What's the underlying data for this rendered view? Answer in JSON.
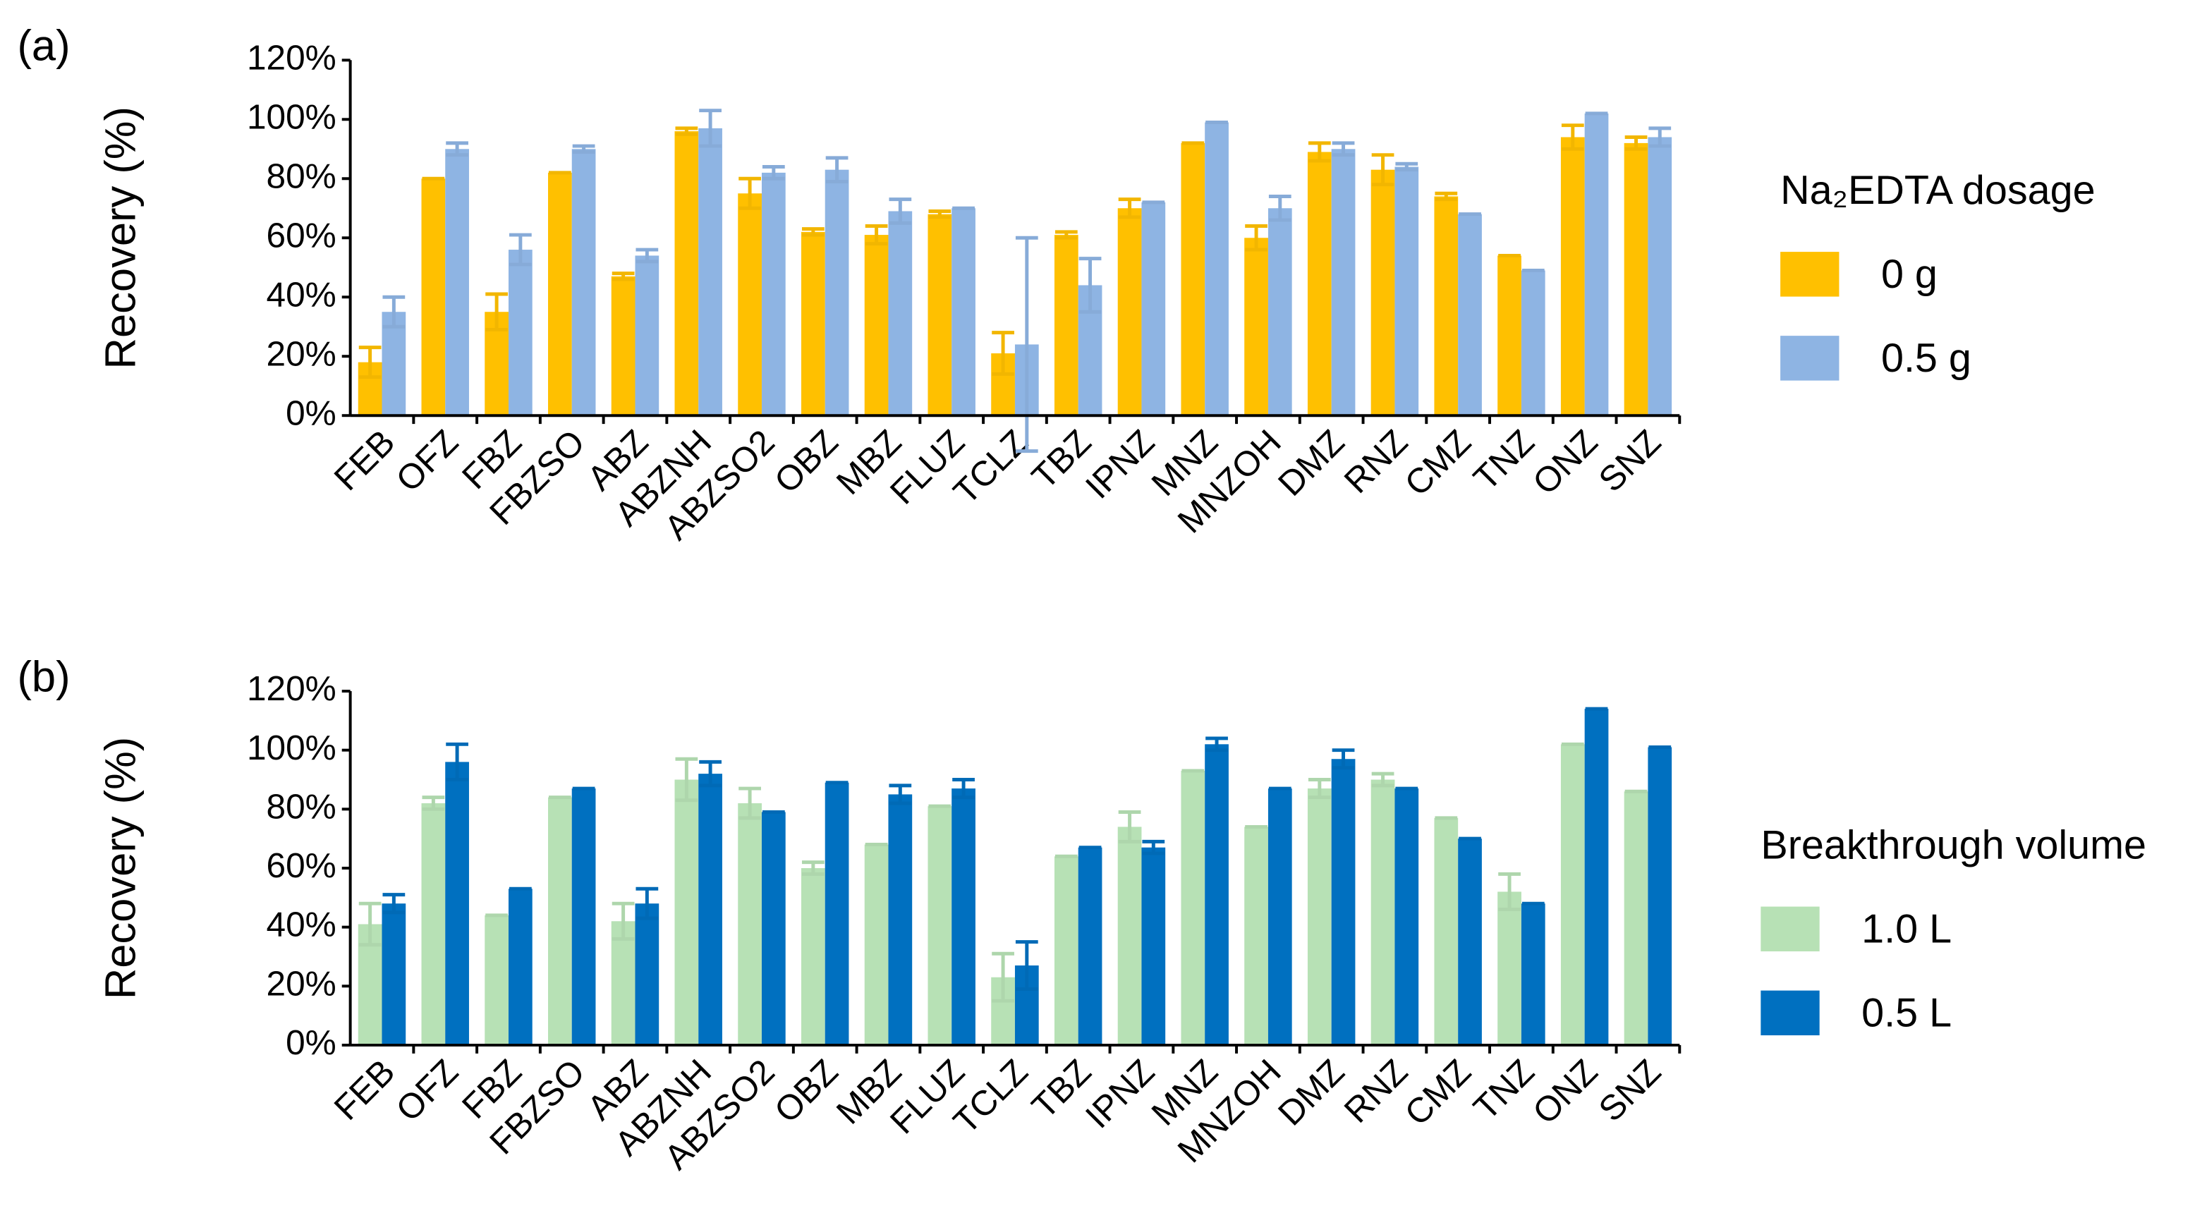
{
  "chart_data": [
    {
      "type": "bar",
      "panel_label": "(a)",
      "y_label": "Recovery (%)",
      "legend_title": "Na₂EDTA dosage",
      "legend": "right",
      "categories": [
        "FEB",
        "OFZ",
        "FBZ",
        "FBZSO",
        "ABZ",
        "ABZNH",
        "ABZSO2",
        "OBZ",
        "MBZ",
        "FLUZ",
        "TCLZ",
        "TBZ",
        "IPNZ",
        "MNZ",
        "MNZOH",
        "DMZ",
        "RNZ",
        "CMZ",
        "TNZ",
        "ONZ",
        "SNZ"
      ],
      "series": [
        {
          "name": "0 g",
          "color": "#ffc000",
          "values": [
            18,
            80,
            35,
            82,
            47,
            96,
            75,
            62,
            61,
            68,
            21,
            61,
            70,
            92,
            60,
            89,
            83,
            74,
            54,
            94,
            92
          ],
          "errors": [
            5,
            0,
            6,
            0,
            1,
            1,
            5,
            1,
            3,
            1,
            7,
            1,
            3,
            0,
            4,
            3,
            5,
            1,
            0,
            4,
            2
          ]
        },
        {
          "name": "0.5 g",
          "color": "#8eb4e3",
          "values": [
            35,
            90,
            56,
            90,
            54,
            97,
            82,
            83,
            69,
            70,
            24,
            44,
            72,
            99,
            70,
            90,
            84,
            68,
            49,
            102,
            94
          ],
          "errors": [
            5,
            2,
            5,
            1,
            2,
            6,
            2,
            4,
            4,
            0,
            36,
            9,
            0,
            0,
            4,
            2,
            1,
            0,
            0,
            0,
            3
          ]
        }
      ],
      "ylim": [
        0,
        120
      ],
      "yticks": [
        {
          "value": 0,
          "label": "0%"
        },
        {
          "value": 20,
          "label": "20%"
        },
        {
          "value": 40,
          "label": "40%"
        },
        {
          "value": 60,
          "label": "60%"
        },
        {
          "value": 80,
          "label": "80%"
        },
        {
          "value": 100,
          "label": "100%"
        },
        {
          "value": 120,
          "label": "120%"
        }
      ]
    },
    {
      "type": "bar",
      "panel_label": "(b)",
      "y_label": "Recovery (%)",
      "legend_title": "Breakthrough volume",
      "legend": "right",
      "categories": [
        "FEB",
        "OFZ",
        "FBZ",
        "FBZSO",
        "ABZ",
        "ABZNH",
        "ABZSO2",
        "OBZ",
        "MBZ",
        "FLUZ",
        "TCLZ",
        "TBZ",
        "IPNZ",
        "MNZ",
        "MNZOH",
        "DMZ",
        "RNZ",
        "CMZ",
        "TNZ",
        "ONZ",
        "SNZ"
      ],
      "series": [
        {
          "name": "1.0 L",
          "color": "#b7e1b5",
          "values": [
            41,
            82,
            44,
            84,
            42,
            90,
            82,
            60,
            68,
            81,
            23,
            64,
            74,
            93,
            74,
            87,
            90,
            77,
            52,
            102,
            86
          ],
          "errors": [
            7,
            2,
            0,
            0,
            6,
            7,
            5,
            2,
            0,
            0,
            8,
            0,
            5,
            0,
            0,
            3,
            2,
            0,
            6,
            0,
            0
          ]
        },
        {
          "name": "0.5 L",
          "color": "#0070c0",
          "values": [
            48,
            96,
            53,
            87,
            48,
            92,
            79,
            89,
            85,
            87,
            27,
            67,
            67,
            102,
            87,
            97,
            87,
            70,
            48,
            114,
            101
          ],
          "errors": [
            3,
            6,
            0,
            0,
            5,
            4,
            0,
            0,
            3,
            3,
            8,
            0,
            2,
            2,
            0,
            3,
            0,
            0,
            0,
            0,
            0
          ]
        }
      ],
      "ylim": [
        0,
        120
      ],
      "yticks": [
        {
          "value": 0,
          "label": "0%"
        },
        {
          "value": 20,
          "label": "20%"
        },
        {
          "value": 40,
          "label": "40%"
        },
        {
          "value": 60,
          "label": "60%"
        },
        {
          "value": 80,
          "label": "80%"
        },
        {
          "value": 100,
          "label": "100%"
        },
        {
          "value": 120,
          "label": "120%"
        }
      ]
    }
  ]
}
